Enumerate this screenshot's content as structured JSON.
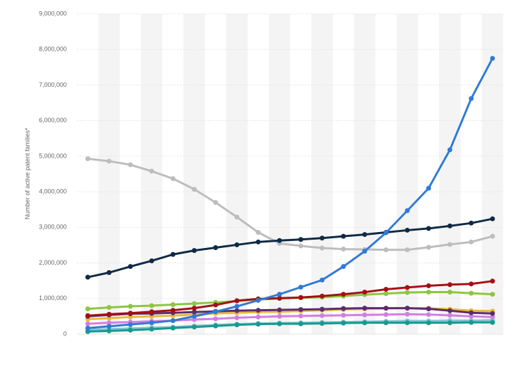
{
  "chart_data": {
    "type": "line",
    "y_label": "Number of active patent families*",
    "categories": [
      null,
      null,
      null,
      null,
      null,
      null,
      null,
      null,
      null,
      null,
      null,
      null,
      null,
      null,
      null,
      null,
      null,
      null,
      null,
      null
    ],
    "ylim": [
      0,
      9000000
    ],
    "yticks": [
      0,
      {
        "value": 1000000,
        "label": "1,000,000"
      },
      {
        "value": 2000000,
        "label": "2,000,000"
      },
      {
        "value": 3000000,
        "label": "3,000,000"
      },
      {
        "value": 4000000,
        "label": "4,000,000"
      },
      {
        "value": 5000000,
        "label": "5,000,000"
      },
      {
        "value": 6000000,
        "label": "6,000,000"
      },
      {
        "value": 7000000,
        "label": "7,000,000"
      },
      {
        "value": 8000000,
        "label": "8,000,000"
      },
      {
        "value": 9000000,
        "label": "9,000,000"
      }
    ],
    "grid": true,
    "series": [
      {
        "color": "#bdbdbd",
        "values": [
          4930000,
          4860000,
          4760000,
          4580000,
          4370000,
          4070000,
          3700000,
          3290000,
          2860000,
          2550000,
          2480000,
          2420000,
          2390000,
          2380000,
          2370000,
          2370000,
          2440000,
          2520000,
          2590000,
          2750000
        ]
      },
      {
        "color": "#7fc3d3",
        "values": [
          120000,
          140000,
          160000,
          180000,
          200000,
          230000,
          260000,
          280000,
          300000,
          310000,
          320000,
          330000,
          340000,
          350000,
          360000,
          370000,
          370000,
          380000,
          380000,
          390000
        ]
      },
      {
        "color": "#159b8d",
        "values": [
          70000,
          90000,
          110000,
          140000,
          170000,
          200000,
          230000,
          260000,
          280000,
          290000,
          290000,
          300000,
          310000,
          320000,
          320000,
          320000,
          320000,
          320000,
          330000,
          330000
        ]
      },
      {
        "color": "#d37ee0",
        "values": [
          290000,
          320000,
          340000,
          360000,
          380000,
          410000,
          430000,
          460000,
          480000,
          500000,
          510000,
          520000,
          530000,
          540000,
          550000,
          560000,
          550000,
          530000,
          500000,
          480000
        ]
      },
      {
        "color": "#e8b93d",
        "values": [
          420000,
          450000,
          480000,
          500000,
          520000,
          550000,
          580000,
          600000,
          620000,
          630000,
          650000,
          670000,
          690000,
          710000,
          720000,
          730000,
          730000,
          700000,
          660000,
          650000
        ]
      },
      {
        "color": "#5b2c6f",
        "values": [
          500000,
          540000,
          570000,
          580000,
          600000,
          620000,
          640000,
          660000,
          670000,
          680000,
          690000,
          700000,
          720000,
          730000,
          730000,
          730000,
          710000,
          660000,
          600000,
          580000
        ]
      },
      {
        "color": "#8dc63f",
        "values": [
          710000,
          750000,
          780000,
          800000,
          830000,
          860000,
          890000,
          930000,
          970000,
          1000000,
          1020000,
          1040000,
          1070000,
          1110000,
          1140000,
          1170000,
          1180000,
          1180000,
          1150000,
          1120000
        ]
      },
      {
        "color": "#a50f15",
        "values": [
          520000,
          560000,
          590000,
          630000,
          670000,
          730000,
          820000,
          940000,
          990000,
          1010000,
          1030000,
          1070000,
          1120000,
          1180000,
          1260000,
          1310000,
          1360000,
          1390000,
          1410000,
          1490000
        ]
      },
      {
        "color": "#0f2a44",
        "values": [
          1600000,
          1730000,
          1900000,
          2060000,
          2240000,
          2350000,
          2430000,
          2510000,
          2590000,
          2630000,
          2660000,
          2700000,
          2750000,
          2800000,
          2860000,
          2920000,
          2970000,
          3040000,
          3120000,
          3240000
        ]
      },
      {
        "color": "#2e7bd6",
        "values": [
          170000,
          220000,
          270000,
          320000,
          380000,
          500000,
          630000,
          780000,
          950000,
          1120000,
          1320000,
          1520000,
          1900000,
          2330000,
          2850000,
          3470000,
          4100000,
          5180000,
          6620000,
          7750000
        ]
      }
    ]
  }
}
